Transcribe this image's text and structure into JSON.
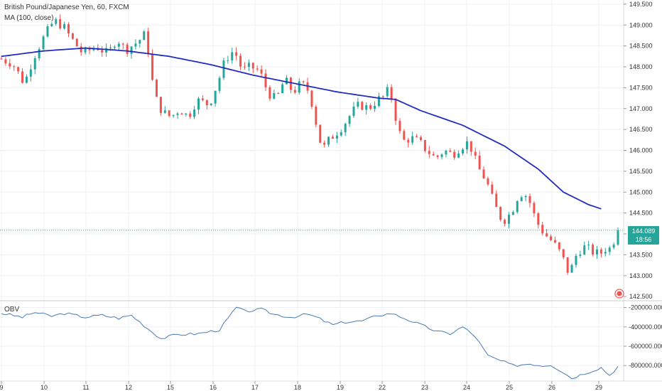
{
  "header": {
    "symbol_title": "British Pound/Japanese Yen, 60, FXCM",
    "indicator_label": "MA (100, close)"
  },
  "obv_panel": {
    "label": "OBV"
  },
  "price_tag": {
    "value": "144.089",
    "countdown": "18:56"
  },
  "colors": {
    "up": "#26a69a",
    "down": "#ef5350",
    "ma": "#1f2dbf",
    "obv": "#4a7ab5",
    "price_line": "#26a69a",
    "grid": "#eef0f3"
  },
  "chart_data": [
    {
      "type": "candlestick",
      "title": "British Pound/Japanese Yen, 60, FXCM",
      "ylim": [
        142.4,
        149.6
      ],
      "y_ticks": [
        "142.500",
        "143.000",
        "143.500",
        "144.000",
        "144.500",
        "145.000",
        "145.500",
        "146.000",
        "146.500",
        "147.000",
        "147.500",
        "148.000",
        "148.500",
        "149.000",
        "149.500"
      ],
      "x_ticks": [
        "9",
        "10",
        "11",
        "12",
        "15",
        "16",
        "17",
        "18",
        "19",
        "22",
        "23",
        "24",
        "25",
        "26",
        "29"
      ],
      "anchors": [
        [
          0,
          148.2
        ],
        [
          3,
          148.1
        ],
        [
          6,
          147.6
        ],
        [
          8,
          148.2
        ],
        [
          10,
          148.6
        ],
        [
          13,
          149.1
        ],
        [
          15,
          149.0
        ],
        [
          17,
          148.7
        ],
        [
          20,
          148.3
        ],
        [
          23,
          148.5
        ],
        [
          26,
          148.3
        ],
        [
          28,
          148.7
        ],
        [
          30,
          148.4
        ],
        [
          33,
          148.6
        ],
        [
          35,
          148.8
        ],
        [
          36,
          148.0
        ],
        [
          37,
          147.3
        ],
        [
          39,
          146.9
        ],
        [
          41,
          146.8
        ],
        [
          43,
          147.0
        ],
        [
          45,
          146.8
        ],
        [
          47,
          147.2
        ],
        [
          50,
          147.1
        ],
        [
          52,
          147.6
        ],
        [
          54,
          148.2
        ],
        [
          56,
          148.4
        ],
        [
          58,
          147.9
        ],
        [
          60,
          148.0
        ],
        [
          62,
          147.9
        ],
        [
          64,
          147.4
        ],
        [
          66,
          147.2
        ],
        [
          68,
          147.7
        ],
        [
          70,
          147.4
        ],
        [
          72,
          147.6
        ],
        [
          74,
          147.4
        ],
        [
          75,
          146.9
        ],
        [
          77,
          146.0
        ],
        [
          79,
          146.3
        ],
        [
          82,
          146.6
        ],
        [
          84,
          146.9
        ],
        [
          86,
          147.1
        ],
        [
          88,
          147.0
        ],
        [
          90,
          147.2
        ],
        [
          92,
          147.3
        ],
        [
          93,
          147.5
        ],
        [
          94,
          147.0
        ],
        [
          96,
          146.2
        ],
        [
          98,
          146.3
        ],
        [
          100,
          146.2
        ],
        [
          102,
          146.0
        ],
        [
          104,
          145.8
        ],
        [
          106,
          146.0
        ],
        [
          108,
          145.9
        ],
        [
          110,
          146.1
        ],
        [
          112,
          146.2
        ],
        [
          114,
          145.6
        ],
        [
          116,
          145.3
        ],
        [
          118,
          144.7
        ],
        [
          120,
          144.3
        ],
        [
          122,
          144.5
        ],
        [
          124,
          145.0
        ],
        [
          126,
          144.9
        ],
        [
          128,
          144.3
        ],
        [
          130,
          144.0
        ],
        [
          132,
          143.8
        ],
        [
          134,
          143.5
        ],
        [
          136,
          143.0
        ],
        [
          137,
          143.4
        ],
        [
          139,
          143.7
        ],
        [
          141,
          143.6
        ],
        [
          143,
          143.5
        ],
        [
          145,
          143.7
        ],
        [
          146,
          143.6
        ],
        [
          147,
          144.09
        ]
      ],
      "ma_anchors": [
        [
          0,
          148.25
        ],
        [
          10,
          148.38
        ],
        [
          20,
          148.45
        ],
        [
          30,
          148.38
        ],
        [
          40,
          148.25
        ],
        [
          50,
          148.05
        ],
        [
          60,
          147.8
        ],
        [
          70,
          147.6
        ],
        [
          80,
          147.4
        ],
        [
          90,
          147.25
        ],
        [
          94,
          147.22
        ],
        [
          100,
          146.95
        ],
        [
          110,
          146.6
        ],
        [
          120,
          146.1
        ],
        [
          128,
          145.55
        ],
        [
          134,
          145.0
        ],
        [
          140,
          144.7
        ],
        [
          143,
          144.6
        ]
      ]
    },
    {
      "type": "line",
      "title": "OBV",
      "ylim": [
        -960000,
        -130000
      ],
      "y_ticks": [
        "-200000.0000",
        "-400000.0000",
        "-600000.0000",
        "-800000.0000"
      ],
      "series": [
        {
          "anchors": [
            [
              0,
              -260000
            ],
            [
              5,
              -300000
            ],
            [
              8,
              -250000
            ],
            [
              12,
              -290000
            ],
            [
              15,
              -260000
            ],
            [
              20,
              -300000
            ],
            [
              24,
              -280000
            ],
            [
              28,
              -310000
            ],
            [
              31,
              -280000
            ],
            [
              35,
              -420000
            ],
            [
              38,
              -520000
            ],
            [
              42,
              -480000
            ],
            [
              47,
              -470000
            ],
            [
              52,
              -430000
            ],
            [
              56,
              -200000
            ],
            [
              58,
              -240000
            ],
            [
              62,
              -220000
            ],
            [
              65,
              -270000
            ],
            [
              69,
              -300000
            ],
            [
              73,
              -270000
            ],
            [
              75,
              -300000
            ],
            [
              79,
              -380000
            ],
            [
              82,
              -350000
            ],
            [
              86,
              -340000
            ],
            [
              90,
              -280000
            ],
            [
              93,
              -260000
            ],
            [
              96,
              -310000
            ],
            [
              100,
              -380000
            ],
            [
              104,
              -450000
            ],
            [
              107,
              -470000
            ],
            [
              110,
              -400000
            ],
            [
              113,
              -500000
            ],
            [
              116,
              -700000
            ],
            [
              119,
              -750000
            ],
            [
              122,
              -800000
            ],
            [
              126,
              -780000
            ],
            [
              129,
              -800000
            ],
            [
              131,
              -790000
            ],
            [
              134,
              -870000
            ],
            [
              136,
              -930000
            ],
            [
              139,
              -880000
            ],
            [
              143,
              -820000
            ],
            [
              145,
              -900000
            ],
            [
              147,
              -810000
            ]
          ]
        }
      ]
    }
  ]
}
